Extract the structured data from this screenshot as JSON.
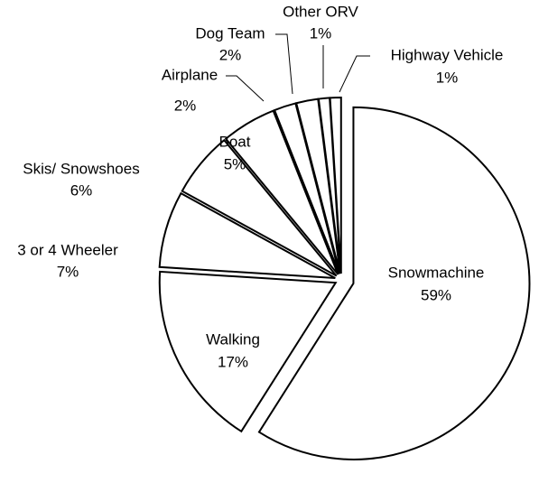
{
  "chart_data": {
    "type": "pie",
    "categories": [
      "Snowmachine",
      "Walking",
      "3 or 4 Wheeler",
      "Skis/ Snowshoes",
      "Boat",
      "Airplane",
      "Dog Team",
      "Other ORV",
      "Highway Vehicle"
    ],
    "values": [
      59,
      17,
      7,
      6,
      5,
      2,
      2,
      1,
      1
    ],
    "value_labels": [
      "59%",
      "17%",
      "7%",
      "6%",
      "5%",
      "2%",
      "2%",
      "1%",
      "1%"
    ],
    "color": "#ffffff"
  }
}
